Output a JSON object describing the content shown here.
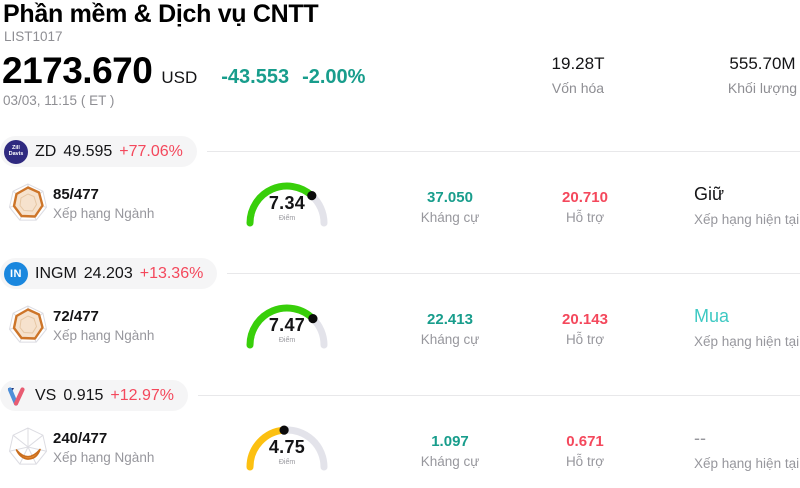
{
  "header": {
    "title": "Phần mềm & Dịch vụ CNTT",
    "list_id": "LIST1017",
    "price": "2173.670",
    "currency": "USD",
    "change": "-43.553",
    "change_pct": "-2.00%",
    "timestamp": "03/03, 11:15 ( ET )",
    "stats": [
      {
        "value": "19.28T",
        "label": "Vốn hóa"
      },
      {
        "value": "555.70M",
        "label": "Khối lượng"
      }
    ]
  },
  "labels": {
    "industry_rank": "Xếp hạng Ngành",
    "score": "Điểm",
    "resistance": "Kháng cự",
    "support": "Hỗ trợ",
    "current_rating": "Xếp hạng hiện tại"
  },
  "colors": {
    "teal": "#189d8c",
    "red": "#f4485c",
    "green": "#38cf0a",
    "amber": "#fcc011",
    "track": "#e3e3ea",
    "gray": "#97979d",
    "dark": "#141416",
    "mua_teal": "#3ec9c3",
    "pill_bg": "#f5f5f6",
    "divider": "#e8e8ea"
  },
  "rows": [
    {
      "logo": {
        "bg": "#2f2a80",
        "line1": "Zill",
        "line2": "Davis"
      },
      "ticker": "ZD",
      "price": "49.595",
      "change_pct": "+77.06%",
      "rank": "85/477",
      "gauge": {
        "value": 7.34,
        "max": 10,
        "display": "7.34",
        "color": "#38cf0a"
      },
      "resistance": "37.050",
      "support": "20.710",
      "rating": "Giữ",
      "rating_color": "#141416",
      "rank_icon": "radar-high"
    },
    {
      "logo": {
        "bg": "#1a87de",
        "text": "IN"
      },
      "ticker": "INGM",
      "price": "24.203",
      "change_pct": "+13.36%",
      "rank": "72/477",
      "gauge": {
        "value": 7.47,
        "max": 10,
        "display": "7.47",
        "color": "#38cf0a"
      },
      "resistance": "22.413",
      "support": "20.143",
      "rating": "Mua",
      "rating_color": "#3ec9c3",
      "rank_icon": "radar-high"
    },
    {
      "logo": {
        "type": "v-mark"
      },
      "ticker": "VS",
      "price": "0.915",
      "change_pct": "+12.97%",
      "rank": "240/477",
      "gauge": {
        "value": 4.75,
        "max": 10,
        "display": "4.75",
        "color": "#fcc011"
      },
      "resistance": "1.097",
      "support": "0.671",
      "rating": "--",
      "rating_color": "#97979d",
      "rank_icon": "radar-low"
    }
  ]
}
